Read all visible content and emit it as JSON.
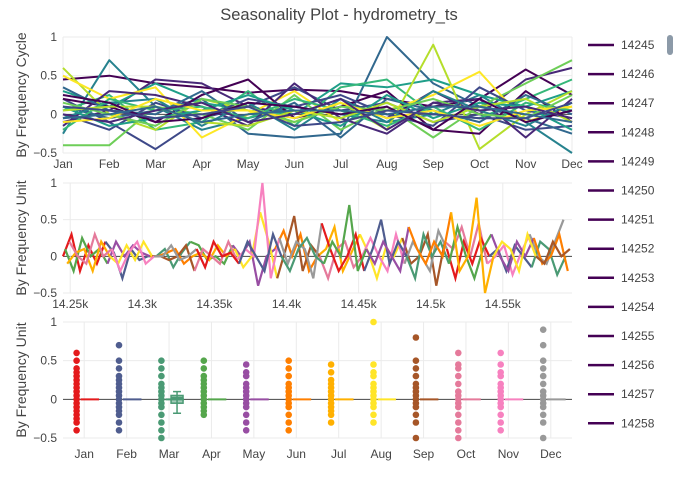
{
  "title": "Seasonality Plot - hydrometry_ts",
  "colors": {
    "grid": "#ebebeb",
    "zero": "#444444",
    "axis_text": "#444444",
    "legend_line": "#440154",
    "scrollbar": "#8c9aa8"
  },
  "legend": {
    "placement": "right",
    "entries": [
      "14245",
      "14246",
      "14247",
      "14248",
      "14249",
      "14250",
      "14251",
      "14252",
      "14253",
      "14254",
      "14255",
      "14256",
      "14257",
      "14258"
    ]
  },
  "chart_data": [
    {
      "type": "line",
      "name": "cycle",
      "ylabel": "By Frequency Cycle",
      "categories": [
        "Jan",
        "Feb",
        "Mar",
        "Apr",
        "May",
        "Jun",
        "Jul",
        "Aug",
        "Sep",
        "Oct",
        "Nov",
        "Dec"
      ],
      "ylim": [
        -0.5,
        1
      ],
      "yticks": [
        -0.5,
        0,
        0.5,
        1
      ],
      "ytick_labels": [
        "−0.5",
        "0",
        "0.5",
        "1"
      ],
      "palette": [
        "#440154",
        "#482878",
        "#3e4989",
        "#31688e",
        "#26828e",
        "#1f9e89",
        "#35b779",
        "#6ece58",
        "#b5de2b",
        "#fde725"
      ],
      "series": [
        {
          "values": [
            0.45,
            0.5,
            0.4,
            0.35,
            0.28,
            0.32,
            0.3,
            0.2,
            0.1,
            0.2,
            0.58,
            0.25
          ]
        },
        {
          "values": [
            -0.1,
            0.05,
            0.45,
            0.4,
            0.1,
            0.0,
            0.2,
            -0.05,
            0.3,
            0.0,
            0.45,
            0.6
          ]
        },
        {
          "values": [
            0.2,
            -0.1,
            -0.45,
            -0.05,
            0.1,
            0.35,
            0.05,
            0.15,
            -0.1,
            0.0,
            -0.2,
            -0.15
          ]
        },
        {
          "values": [
            0.1,
            -0.05,
            0.05,
            0.2,
            -0.25,
            -0.3,
            -0.25,
            1.0,
            0.4,
            0.1,
            -0.05,
            -0.25
          ]
        },
        {
          "values": [
            -0.25,
            0.7,
            0.1,
            -0.2,
            -0.05,
            0.1,
            0.0,
            -0.1,
            0.0,
            0.25,
            -0.1,
            -0.5
          ]
        },
        {
          "values": [
            0.3,
            0.1,
            0.4,
            0.15,
            0.05,
            0.0,
            0.4,
            0.35,
            0.45,
            0.25,
            0.1,
            0.3
          ]
        },
        {
          "values": [
            0.05,
            0.25,
            -0.2,
            -0.1,
            0.3,
            -0.15,
            0.35,
            0.45,
            0.0,
            -0.05,
            0.2,
            0.45
          ]
        },
        {
          "values": [
            -0.4,
            -0.4,
            0.1,
            0.0,
            -0.2,
            0.25,
            -0.2,
            0.1,
            -0.3,
            0.1,
            0.4,
            0.7
          ]
        },
        {
          "values": [
            0.6,
            0.0,
            -0.2,
            0.2,
            0.05,
            -0.1,
            0.15,
            -0.2,
            0.9,
            -0.45,
            0.0,
            0.3
          ]
        },
        {
          "values": [
            0.5,
            0.2,
            0.35,
            -0.3,
            0.0,
            0.3,
            -0.1,
            0.05,
            0.25,
            0.55,
            -0.1,
            0.1
          ]
        },
        {
          "values": [
            0.2,
            0.1,
            -0.1,
            0.25,
            0.45,
            -0.05,
            0.1,
            0.3,
            -0.2,
            -0.25,
            0.3,
            -0.1
          ]
        },
        {
          "values": [
            -0.15,
            0.3,
            0.25,
            0.1,
            -0.15,
            0.4,
            -0.05,
            -0.25,
            0.15,
            0.2,
            -0.3,
            0.2
          ]
        },
        {
          "values": [
            0.0,
            -0.2,
            0.15,
            -0.05,
            0.2,
            0.1,
            0.25,
            0.0,
            -0.15,
            0.35,
            0.05,
            -0.05
          ]
        },
        {
          "values": [
            0.35,
            0.05,
            0.0,
            0.3,
            -0.1,
            0.15,
            -0.3,
            0.2,
            0.05,
            -0.1,
            0.25,
            0.0
          ]
        },
        {
          "values": [
            -0.05,
            0.15,
            0.2,
            -0.15,
            0.15,
            -0.2,
            0.2,
            -0.1,
            0.3,
            0.05,
            -0.15,
            0.15
          ]
        },
        {
          "values": [
            0.1,
            -0.15,
            -0.05,
            0.05,
            0.25,
            0.05,
            -0.15,
            0.25,
            -0.05,
            0.15,
            0.1,
            -0.2
          ]
        },
        {
          "values": [
            -0.2,
            0.2,
            0.05,
            0.1,
            -0.05,
            0.2,
            0.05,
            -0.15,
            0.1,
            -0.2,
            0.15,
            0.05
          ]
        },
        {
          "values": [
            0.15,
            0.0,
            -0.15,
            0.2,
            0.1,
            -0.1,
            0.1,
            0.05,
            0.2,
            0.0,
            -0.05,
            0.25
          ]
        },
        {
          "values": [
            0.05,
            0.1,
            0.1,
            -0.1,
            -0.15,
            0.05,
            -0.05,
            0.15,
            -0.1,
            0.1,
            0.2,
            -0.1
          ]
        },
        {
          "values": [
            -0.1,
            -0.05,
            0.2,
            0.05,
            0.05,
            -0.05,
            0.15,
            -0.05,
            0.05,
            -0.15,
            0.05,
            0.1
          ]
        },
        {
          "values": [
            0.25,
            0.15,
            -0.1,
            -0.05,
            0.15,
            0.1,
            0.0,
            0.1,
            -0.2,
            0.2,
            -0.1,
            0.05
          ]
        },
        {
          "values": [
            0.0,
            -0.1,
            0.05,
            0.15,
            -0.1,
            0.0,
            0.2,
            -0.2,
            0.15,
            0.05,
            0.1,
            -0.05
          ]
        },
        {
          "values": [
            0.1,
            0.05,
            -0.05,
            0.0,
            0.1,
            -0.15,
            -0.1,
            0.05,
            0.0,
            -0.05,
            -0.05,
            0.15
          ]
        },
        {
          "values": [
            -0.05,
            0.0,
            0.1,
            -0.1,
            0.0,
            0.05,
            0.05,
            0.0,
            0.1,
            0.1,
            0.0,
            -0.1
          ]
        }
      ]
    },
    {
      "type": "line",
      "name": "unit",
      "ylabel": "By Frequency Unit",
      "xlim": [
        14245,
        14598
      ],
      "xticks": [
        14250,
        14300,
        14350,
        14400,
        14450,
        14500,
        14550
      ],
      "xtick_labels": [
        "14.25k",
        "14.3k",
        "14.35k",
        "14.4k",
        "14.45k",
        "14.5k",
        "14.55k"
      ],
      "ylim": [
        -0.5,
        1
      ],
      "yticks": [
        -0.5,
        0,
        0.5,
        1
      ],
      "ytick_labels": [
        "−0.5",
        "0",
        "0.5",
        "1"
      ],
      "palette": [
        "#e41a1c",
        "#4f5d8f",
        "#4a9a74",
        "#55a64c",
        "#984ea3",
        "#ff7f00",
        "#ffb000",
        "#ffe528",
        "#a65628",
        "#e57a9b",
        "#f781bf",
        "#999999"
      ],
      "series": [
        {
          "values": [
            0.0,
            0.3,
            -0.2,
            0.15,
            -0.1,
            0.2,
            0.05,
            -0.3,
            0.1,
            -0.05,
            0.0,
            0.0,
            0.1,
            -0.15,
            0.05,
            0.2,
            0.15,
            -0.05,
            0.0,
            -0.1,
            0.15,
            0.0,
            0.2,
            -0.4,
            0.0,
            0.1,
            0.35,
            0.0,
            0.3,
            -0.2,
            0.0,
            0.1,
            0.4,
            -0.2,
            0.05,
            0.3,
            0.05,
            -0.3,
            0.1,
            0.0,
            0.25,
            -0.1,
            0.0,
            0.3,
            -0.4,
            0.2,
            0.1,
            0.4,
            0.0,
            0.45,
            -0.1,
            0.0,
            0.15,
            -0.25,
            0.05,
            0.3,
            0.0,
            -0.1,
            0.2,
            0.5
          ]
        },
        {
          "values": [
            0.1,
            -0.2,
            0.25,
            0.0,
            0.1,
            -0.1,
            0.2,
            0.0,
            0.15,
            0.05,
            0.0,
            0.0,
            0.05,
            0.1,
            -0.1,
            0.0,
            0.05,
            -0.05,
            0.15,
            0.0,
            0.1,
            -0.15,
            0.0,
            0.6,
            0.2,
            -0.3,
            0.1,
            0.55,
            -0.2,
            0.15,
            0.0,
            -0.3,
            0.1,
            0.2,
            -0.15,
            0.0,
            0.25,
            0.0,
            -0.2,
            0.3,
            -0.1,
            0.2,
            0.0,
            -0.2,
            0.35,
            0.1,
            -0.3,
            0.2,
            -0.1,
            0.25,
            0.0,
            0.1,
            -0.2,
            0.15,
            0.0,
            -0.15,
            0.2,
            0.1,
            -0.25,
            0.0
          ]
        },
        {
          "values": [
            -0.1,
            0.05,
            0.1,
            -0.2,
            0.2,
            0.0,
            -0.1,
            0.15,
            -0.05,
            0.2,
            0.0,
            0.0,
            -0.05,
            0.0,
            0.15,
            -0.2,
            0.1,
            0.0,
            -0.1,
            0.2,
            -0.05,
            0.1,
            0.0,
            1.0,
            -0.3,
            0.25,
            -0.1,
            0.2,
            0.1,
            -0.3,
            0.45,
            0.1,
            -0.2,
            0.0,
            0.3,
            -0.2,
            0.1,
            0.5,
            -0.1,
            0.2,
            0.0,
            -0.3,
            0.3,
            0.0,
            0.2,
            -0.1,
            0.4,
            0.0,
            -0.3,
            0.1,
            0.3,
            0.0,
            -0.2,
            0.2,
            0.0,
            0.25,
            -0.1,
            0.0,
            0.3,
            -0.2
          ]
        },
        {
          "values": [
            0.2,
            0.0,
            -0.1,
            0.3,
            0.0,
            0.1,
            -0.2,
            0.05,
            0.2,
            -0.1,
            0.0,
            0.0,
            0.15,
            -0.05,
            0.0,
            0.1,
            -0.15,
            0.2,
            0.0,
            0.05,
            -0.1,
            0.2,
            0.0,
            -0.2,
            0.3,
            0.0,
            -0.2,
            0.1,
            0.25,
            0.0,
            -0.1,
            0.2,
            0.0,
            0.7,
            -0.2,
            0.1,
            -0.1,
            0.2,
            0.0,
            -0.2,
            0.4,
            0.1,
            -0.1,
            0.2,
            0.0,
            0.6,
            -0.2,
            0.0,
            0.8,
            -0.5,
            0.0,
            0.2,
            0.1,
            -0.2,
            0.3,
            0.0,
            -0.1,
            0.2,
            0.0,
            0.1
          ]
        }
      ]
    },
    {
      "type": "box",
      "name": "box",
      "ylabel": "By Frequency Unit",
      "categories": [
        "Jan",
        "Feb",
        "Mar",
        "Apr",
        "May",
        "Jun",
        "Jul",
        "Aug",
        "Sep",
        "Oct",
        "Nov",
        "Dec"
      ],
      "ylim": [
        -0.5,
        1
      ],
      "yticks": [
        -0.5,
        0,
        0.5,
        1
      ],
      "ytick_labels": [
        "−0.5",
        "0",
        "0.5",
        "1"
      ],
      "colors": [
        "#e41a1c",
        "#4f5d8f",
        "#4a9a74",
        "#55a64c",
        "#984ea3",
        "#ff7f00",
        "#ffb000",
        "#ffe528",
        "#a65628",
        "#e57a9b",
        "#f781bf",
        "#999999"
      ],
      "points": [
        [
          0.6,
          0.5,
          0.4,
          0.35,
          0.3,
          0.25,
          0.2,
          0.15,
          0.1,
          0.05,
          0.0,
          -0.05,
          -0.1,
          -0.15,
          -0.2,
          -0.25,
          -0.3,
          -0.4
        ],
        [
          0.7,
          0.5,
          0.4,
          0.3,
          0.25,
          0.2,
          0.15,
          0.1,
          0.05,
          0.0,
          -0.05,
          -0.1,
          -0.15,
          -0.2,
          -0.3,
          -0.4
        ],
        [
          0.5,
          0.4,
          0.3,
          0.2,
          0.15,
          0.1,
          0.05,
          0.0,
          -0.05,
          -0.1,
          -0.2,
          -0.3,
          -0.4,
          -0.5
        ],
        [
          0.5,
          0.4,
          0.3,
          0.25,
          0.2,
          0.15,
          0.1,
          0.05,
          0.0,
          -0.05,
          -0.1,
          -0.15,
          -0.2
        ],
        [
          0.45,
          0.35,
          0.3,
          0.2,
          0.15,
          0.1,
          0.05,
          0.0,
          -0.05,
          -0.1,
          -0.2,
          -0.3,
          -0.4
        ],
        [
          0.5,
          0.4,
          0.3,
          0.2,
          0.15,
          0.1,
          0.05,
          0.0,
          -0.05,
          -0.1,
          -0.2,
          -0.3,
          -0.4
        ],
        [
          0.45,
          0.35,
          0.25,
          0.2,
          0.15,
          0.1,
          0.05,
          0.0,
          -0.05,
          -0.1,
          -0.15,
          -0.2,
          -0.3
        ],
        [
          1.0,
          0.45,
          0.35,
          0.3,
          0.2,
          0.15,
          0.1,
          0.05,
          0.0,
          -0.05,
          -0.1,
          -0.2,
          -0.3
        ],
        [
          0.8,
          0.5,
          0.4,
          0.3,
          0.2,
          0.15,
          0.1,
          0.05,
          0.0,
          -0.05,
          -0.1,
          -0.2,
          -0.3,
          -0.5
        ],
        [
          0.6,
          0.45,
          0.4,
          0.3,
          0.2,
          0.1,
          0.05,
          0.0,
          -0.05,
          -0.1,
          -0.2,
          -0.3,
          -0.4,
          -0.5
        ],
        [
          0.6,
          0.45,
          0.35,
          0.3,
          0.2,
          0.15,
          0.1,
          0.05,
          0.0,
          -0.05,
          -0.1,
          -0.2,
          -0.3,
          -0.4
        ],
        [
          0.9,
          0.7,
          0.5,
          0.4,
          0.3,
          0.2,
          0.1,
          0.05,
          0.0,
          -0.05,
          -0.1,
          -0.2,
          -0.3,
          -0.5
        ]
      ],
      "box_stats": [
        null,
        null,
        {
          "q1": -0.05,
          "median": 0.02,
          "q3": 0.05,
          "whisker_low": -0.18,
          "whisker_high": 0.1
        },
        null,
        null,
        null,
        null,
        null,
        null,
        null,
        null,
        null
      ]
    }
  ]
}
